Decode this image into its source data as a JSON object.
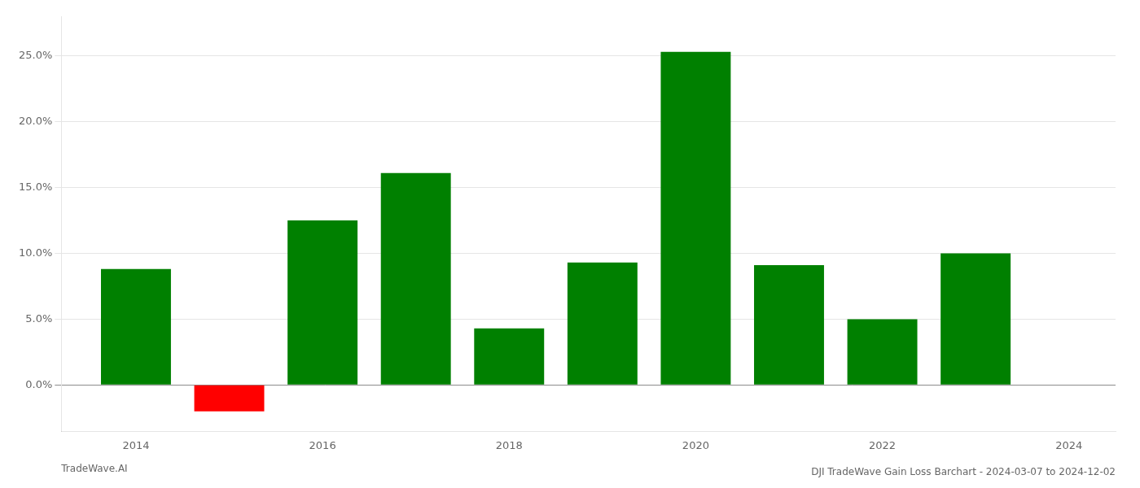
{
  "chart_data": {
    "type": "bar",
    "title": "DJI TradeWave Gain Loss Barchart - 2024-03-07 to 2024-12-02",
    "annotations": [
      "TradeWave.AI"
    ],
    "x": [
      2014,
      2015,
      2016,
      2017,
      2018,
      2019,
      2020,
      2021,
      2022,
      2023
    ],
    "values": [
      8.8,
      -2.0,
      12.5,
      16.1,
      4.3,
      9.3,
      25.3,
      9.1,
      5.0,
      10.0
    ],
    "colors": [
      "#008000",
      "#ff0000",
      "#008000",
      "#008000",
      "#008000",
      "#008000",
      "#008000",
      "#008000",
      "#008000",
      "#008000"
    ],
    "xlim": [
      2013.2,
      2024.5
    ],
    "xticks": [
      2014,
      2016,
      2018,
      2020,
      2022,
      2024
    ],
    "ylim": [
      -3.5,
      28.0
    ],
    "yticks": [
      {
        "value": 0.0,
        "label": "0.0%"
      },
      {
        "value": 5.0,
        "label": "5.0%"
      },
      {
        "value": 10.0,
        "label": "10.0%"
      },
      {
        "value": 15.0,
        "label": "15.0%"
      },
      {
        "value": 20.0,
        "label": "20.0%"
      },
      {
        "value": 25.0,
        "label": "25.0%"
      }
    ],
    "grid": true
  }
}
